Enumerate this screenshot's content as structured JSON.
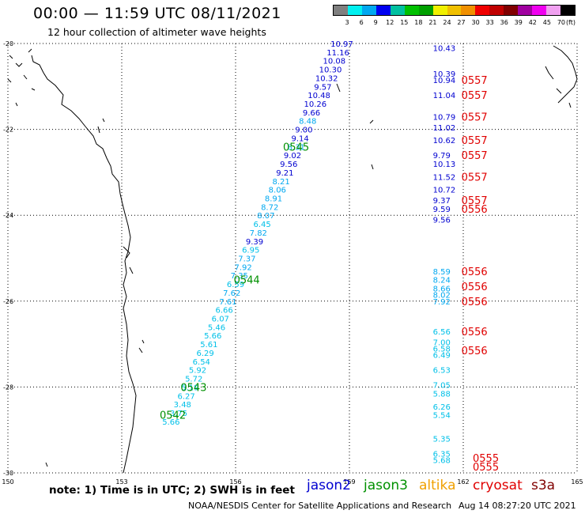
{
  "header": {
    "title": "00:00 — 11:59 UTC 08/11/2021",
    "subtitle": "12 hour collection of altimeter wave heights"
  },
  "legend": {
    "colors": [
      "#7f7f7f",
      "#00f0f0",
      "#00a8f0",
      "#0000f0",
      "#00c0a0",
      "#00c000",
      "#00a000",
      "#f0f000",
      "#f0c000",
      "#f09000",
      "#f00000",
      "#c00000",
      "#800000",
      "#a000a0",
      "#f000f0",
      "#f0a0f0",
      "#000000"
    ],
    "ticks": [
      "3",
      "6",
      "9",
      "12",
      "15",
      "18",
      "21",
      "24",
      "27",
      "30",
      "33",
      "36",
      "39",
      "42",
      "45",
      "70"
    ],
    "unit": "(ft)"
  },
  "axes": {
    "lat_labels": [
      "-20",
      "-22",
      "-24",
      "-26",
      "-28",
      "-30"
    ],
    "lon_labels": [
      "150",
      "153",
      "156",
      "159",
      "162",
      "165"
    ]
  },
  "satellites": {
    "jason2": {
      "label": "jason2",
      "color": "#0000d0"
    },
    "jason3": {
      "label": "jason3",
      "color": "#009000"
    },
    "altika": {
      "label": "altika",
      "color": "#f0a000"
    },
    "cryosat": {
      "label": "cryosat",
      "color": "#e00000"
    },
    "s3a": {
      "label": "s3a",
      "color": "#800000"
    }
  },
  "tracks": {
    "diagonal": [
      {
        "v": "10.97",
        "lon": 158.8,
        "lat": -20.0,
        "c": "#0000d0"
      },
      {
        "v": "11.16",
        "lon": 158.7,
        "lat": -20.2,
        "c": "#0000d0"
      },
      {
        "v": "10.08",
        "lon": 158.6,
        "lat": -20.4,
        "c": "#0000d0"
      },
      {
        "v": "10.30",
        "lon": 158.5,
        "lat": -20.6,
        "c": "#0000d0"
      },
      {
        "v": "10.32",
        "lon": 158.4,
        "lat": -20.8,
        "c": "#0000d0"
      },
      {
        "v": "9.57",
        "lon": 158.3,
        "lat": -21.0,
        "c": "#0000d0"
      },
      {
        "v": "10.48",
        "lon": 158.2,
        "lat": -21.2,
        "c": "#0000d0"
      },
      {
        "v": "10.26",
        "lon": 158.1,
        "lat": -21.4,
        "c": "#0000d0"
      },
      {
        "v": "9.66",
        "lon": 158.0,
        "lat": -21.6,
        "c": "#0000d0"
      },
      {
        "v": "8.48",
        "lon": 157.9,
        "lat": -21.8,
        "c": "#00a8f0"
      },
      {
        "v": "9.00",
        "lon": 157.8,
        "lat": -22.0,
        "c": "#0000d0"
      },
      {
        "v": "9.14",
        "lon": 157.7,
        "lat": -22.2,
        "c": "#0000d0"
      },
      {
        "v": "8.31",
        "lon": 157.6,
        "lat": -22.4,
        "c": "#00a8f0"
      },
      {
        "v": "9.02",
        "lon": 157.5,
        "lat": -22.6,
        "c": "#0000d0"
      },
      {
        "v": "9.56",
        "lon": 157.4,
        "lat": -22.8,
        "c": "#0000d0"
      },
      {
        "v": "9.21",
        "lon": 157.3,
        "lat": -23.0,
        "c": "#0000d0"
      },
      {
        "v": "8.21",
        "lon": 157.2,
        "lat": -23.2,
        "c": "#00a8f0"
      },
      {
        "v": "8.06",
        "lon": 157.1,
        "lat": -23.4,
        "c": "#00a8f0"
      },
      {
        "v": "8.91",
        "lon": 157.0,
        "lat": -23.6,
        "c": "#00a8f0"
      },
      {
        "v": "8.72",
        "lon": 156.9,
        "lat": -23.8,
        "c": "#00a8f0"
      },
      {
        "v": "8.07",
        "lon": 156.8,
        "lat": -24.0,
        "c": "#00a8f0"
      },
      {
        "v": "6.45",
        "lon": 156.7,
        "lat": -24.2,
        "c": "#00c0e8"
      },
      {
        "v": "7.82",
        "lon": 156.6,
        "lat": -24.4,
        "c": "#00a8f0"
      },
      {
        "v": "9.39",
        "lon": 156.5,
        "lat": -24.6,
        "c": "#0000d0"
      },
      {
        "v": "6.95",
        "lon": 156.4,
        "lat": -24.8,
        "c": "#00c0e8"
      },
      {
        "v": "7.37",
        "lon": 156.3,
        "lat": -25.0,
        "c": "#00a8f0"
      },
      {
        "v": "7.92",
        "lon": 156.2,
        "lat": -25.2,
        "c": "#00a8f0"
      },
      {
        "v": "7.35",
        "lon": 156.1,
        "lat": -25.4,
        "c": "#00a8f0"
      },
      {
        "v": "6.59",
        "lon": 156.0,
        "lat": -25.6,
        "c": "#00c0e8"
      },
      {
        "v": "7.62",
        "lon": 155.9,
        "lat": -25.8,
        "c": "#00a8f0"
      },
      {
        "v": "7.61",
        "lon": 155.8,
        "lat": -26.0,
        "c": "#00a8f0"
      },
      {
        "v": "6.66",
        "lon": 155.7,
        "lat": -26.2,
        "c": "#00c0e8"
      },
      {
        "v": "6.07",
        "lon": 155.6,
        "lat": -26.4,
        "c": "#00c0e8"
      },
      {
        "v": "5.46",
        "lon": 155.5,
        "lat": -26.6,
        "c": "#00c0e8"
      },
      {
        "v": "5.66",
        "lon": 155.4,
        "lat": -26.8,
        "c": "#00c0e8"
      },
      {
        "v": "5.61",
        "lon": 155.3,
        "lat": -27.0,
        "c": "#00c0e8"
      },
      {
        "v": "6.29",
        "lon": 155.2,
        "lat": -27.2,
        "c": "#00c0e8"
      },
      {
        "v": "6.54",
        "lon": 155.1,
        "lat": -27.4,
        "c": "#00c0e8"
      },
      {
        "v": "5.92",
        "lon": 155.0,
        "lat": -27.6,
        "c": "#00c0e8"
      },
      {
        "v": "5.72",
        "lon": 154.9,
        "lat": -27.8,
        "c": "#00c0e8"
      },
      {
        "v": "5.19",
        "lon": 154.8,
        "lat": -28.0,
        "c": "#00c0e8"
      },
      {
        "v": "6.27",
        "lon": 154.7,
        "lat": -28.2,
        "c": "#00c0e8"
      },
      {
        "v": "3.48",
        "lon": 154.6,
        "lat": -28.4,
        "c": "#00c0e8"
      },
      {
        "v": "3.75",
        "lon": 154.5,
        "lat": -28.6,
        "c": "#00c0e8"
      },
      {
        "v": "5.66",
        "lon": 154.3,
        "lat": -28.8,
        "c": "#00c0e8"
      }
    ],
    "vertical": [
      {
        "v": "10.43",
        "lon": 161.2,
        "lat": -20.1,
        "c": "#0000d0"
      },
      {
        "v": "10.39",
        "lon": 161.2,
        "lat": -20.7,
        "c": "#0000d0"
      },
      {
        "v": "10.94",
        "lon": 161.2,
        "lat": -20.85,
        "c": "#0000d0"
      },
      {
        "v": "11.04",
        "lon": 161.2,
        "lat": -21.2,
        "c": "#0000d0"
      },
      {
        "v": "10.79",
        "lon": 161.2,
        "lat": -21.7,
        "c": "#0000d0"
      },
      {
        "v": "11.02",
        "lon": 161.2,
        "lat": -21.95,
        "c": "#0000d0"
      },
      {
        "v": "10.62",
        "lon": 161.2,
        "lat": -22.25,
        "c": "#0000d0"
      },
      {
        "v": "9.79",
        "lon": 161.2,
        "lat": -22.6,
        "c": "#0000d0"
      },
      {
        "v": "10.13",
        "lon": 161.2,
        "lat": -22.8,
        "c": "#0000d0"
      },
      {
        "v": "11.52",
        "lon": 161.2,
        "lat": -23.1,
        "c": "#0000d0"
      },
      {
        "v": "10.72",
        "lon": 161.2,
        "lat": -23.4,
        "c": "#0000d0"
      },
      {
        "v": "9.37",
        "lon": 161.2,
        "lat": -23.65,
        "c": "#0000d0"
      },
      {
        "v": "9.59",
        "lon": 161.2,
        "lat": -23.85,
        "c": "#0000d0"
      },
      {
        "v": "9.56",
        "lon": 161.2,
        "lat": -24.1,
        "c": "#0000d0"
      },
      {
        "v": "8.59",
        "lon": 161.2,
        "lat": -25.3,
        "c": "#00a8f0"
      },
      {
        "v": "8.24",
        "lon": 161.2,
        "lat": -25.5,
        "c": "#00a8f0"
      },
      {
        "v": "8.66",
        "lon": 161.2,
        "lat": -25.7,
        "c": "#00a8f0"
      },
      {
        "v": "8.02",
        "lon": 161.2,
        "lat": -25.85,
        "c": "#00a8f0"
      },
      {
        "v": "7.92",
        "lon": 161.2,
        "lat": -26.0,
        "c": "#00a8f0"
      },
      {
        "v": "6.56",
        "lon": 161.2,
        "lat": -26.7,
        "c": "#00c0e8"
      },
      {
        "v": "7.00",
        "lon": 161.2,
        "lat": -26.95,
        "c": "#00c0e8"
      },
      {
        "v": "6.58",
        "lon": 161.2,
        "lat": -27.1,
        "c": "#00c0e8"
      },
      {
        "v": "6.49",
        "lon": 161.2,
        "lat": -27.25,
        "c": "#00c0e8"
      },
      {
        "v": "6.53",
        "lon": 161.2,
        "lat": -27.6,
        "c": "#00c0e8"
      },
      {
        "v": "7.05",
        "lon": 161.2,
        "lat": -27.95,
        "c": "#00c0e8"
      },
      {
        "v": "5.88",
        "lon": 161.2,
        "lat": -28.15,
        "c": "#00c0e8"
      },
      {
        "v": "6.26",
        "lon": 161.2,
        "lat": -28.45,
        "c": "#00c0e8"
      },
      {
        "v": "5.54",
        "lon": 161.2,
        "lat": -28.65,
        "c": "#00c0e8"
      },
      {
        "v": "5.35",
        "lon": 161.2,
        "lat": -29.2,
        "c": "#00c0e8"
      },
      {
        "v": "6.35",
        "lon": 161.2,
        "lat": -29.55,
        "c": "#00c0e8"
      },
      {
        "v": "5.68",
        "lon": 161.2,
        "lat": -29.7,
        "c": "#00c0e8"
      }
    ]
  },
  "time_labels": [
    {
      "t": "0545",
      "lon": 157.25,
      "lat": -22.4,
      "c": "#009000"
    },
    {
      "t": "0544",
      "lon": 155.95,
      "lat": -25.5,
      "c": "#009000"
    },
    {
      "t": "0543",
      "lon": 154.55,
      "lat": -28.0,
      "c": "#009000"
    },
    {
      "t": "0542",
      "lon": 154.0,
      "lat": -28.65,
      "c": "#009000"
    },
    {
      "t": "0557",
      "lon": 161.95,
      "lat": -20.85,
      "c": "#e00000"
    },
    {
      "t": "0557",
      "lon": 161.95,
      "lat": -21.2,
      "c": "#e00000"
    },
    {
      "t": "0557",
      "lon": 161.95,
      "lat": -21.7,
      "c": "#e00000"
    },
    {
      "t": "0557",
      "lon": 161.95,
      "lat": -22.25,
      "c": "#e00000"
    },
    {
      "t": "0557",
      "lon": 161.95,
      "lat": -22.6,
      "c": "#e00000"
    },
    {
      "t": "0557",
      "lon": 161.95,
      "lat": -23.1,
      "c": "#e00000"
    },
    {
      "t": "0557",
      "lon": 161.95,
      "lat": -23.65,
      "c": "#e00000"
    },
    {
      "t": "0556",
      "lon": 161.95,
      "lat": -23.85,
      "c": "#e00000"
    },
    {
      "t": "0556",
      "lon": 161.95,
      "lat": -25.3,
      "c": "#e00000"
    },
    {
      "t": "0556",
      "lon": 161.95,
      "lat": -25.65,
      "c": "#e00000"
    },
    {
      "t": "0556",
      "lon": 161.95,
      "lat": -26.0,
      "c": "#e00000"
    },
    {
      "t": "0556",
      "lon": 161.95,
      "lat": -26.7,
      "c": "#e00000"
    },
    {
      "t": "0556",
      "lon": 161.95,
      "lat": -27.15,
      "c": "#e00000"
    },
    {
      "t": "0555",
      "lon": 162.25,
      "lat": -29.65,
      "c": "#e00000"
    },
    {
      "t": "0555",
      "lon": 162.25,
      "lat": -29.85,
      "c": "#e00000"
    }
  ],
  "footer": {
    "note": "note: 1) Time is in UTC; 2) SWH is in feet",
    "credit": "NOAA/NESDIS Center for Satellite Applications and Research",
    "stamp": "Aug 14 08:27:20 UTC 2021"
  }
}
